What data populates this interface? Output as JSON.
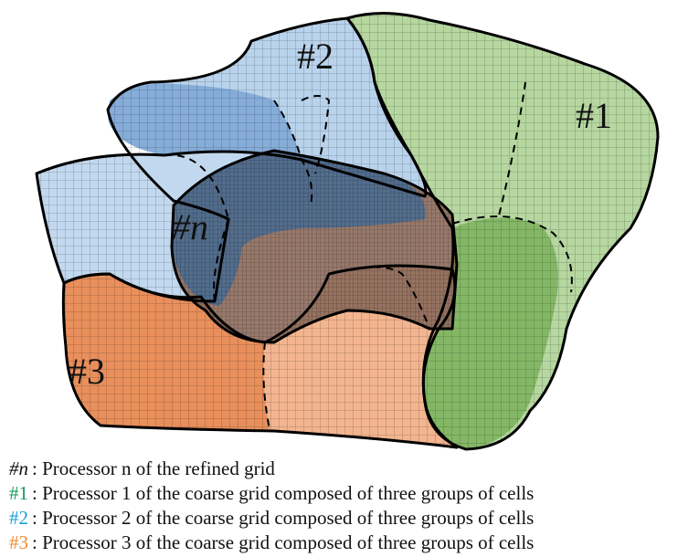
{
  "regions": [
    {
      "label": "#1"
    },
    {
      "label": "#2"
    },
    {
      "label": "#3"
    },
    {
      "label": "#n"
    }
  ],
  "legend": [
    {
      "key": "#n",
      "text": ": Processor n of the refined grid"
    },
    {
      "key": "#1",
      "text": ": Processor 1 of the coarse grid composed of three groups of cells"
    },
    {
      "key": "#2",
      "text": ": Processor 2 of the coarse grid composed of three groups of cells"
    },
    {
      "key": "#3",
      "text": ": Processor 3 of the coarse grid composed of three groups of cells"
    }
  ]
}
